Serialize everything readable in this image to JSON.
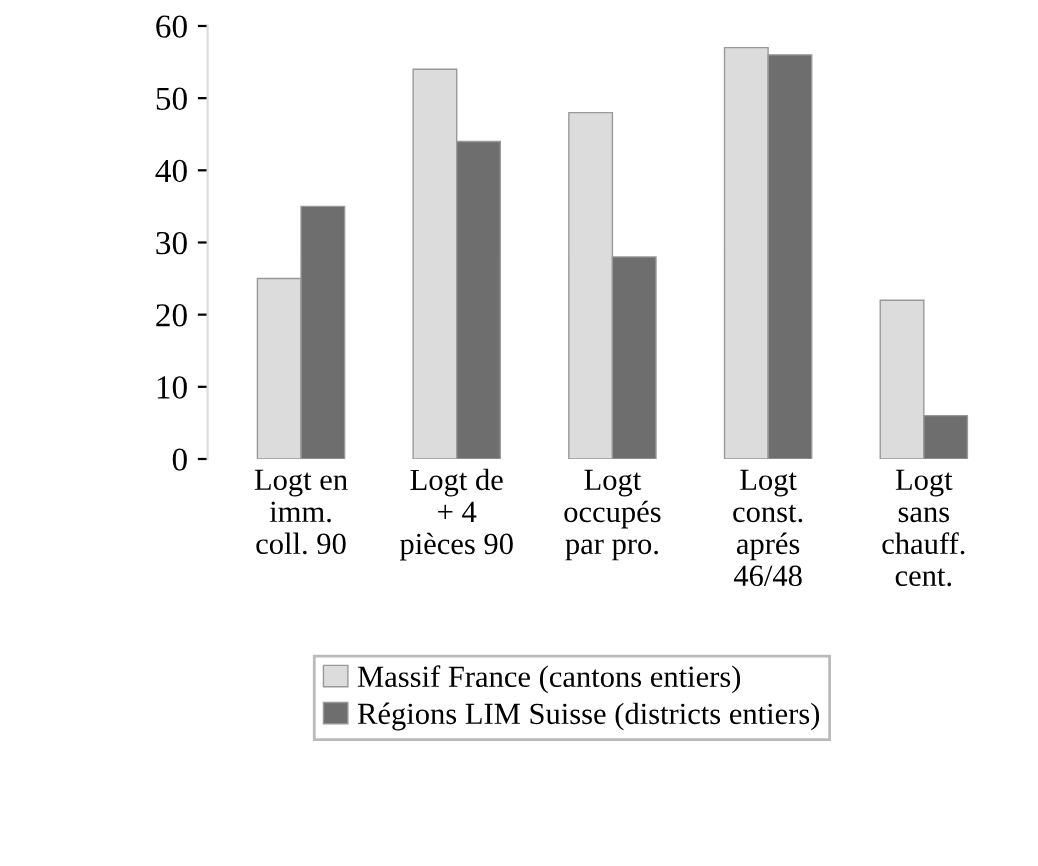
{
  "chart_data": {
    "type": "bar",
    "categories": [
      "Logt en\nimm.\ncoll. 90",
      "Logt de\n+ 4\npièces 90",
      "Logt\noccupés\npar pro.",
      "Logt\nconst.\naprés\n46/48",
      "Logt\nsans\nchauff.\ncent."
    ],
    "series": [
      {
        "name": "Massif France (cantons entiers)",
        "color": "#dcdcdc",
        "values": [
          25,
          54,
          48,
          57,
          22
        ]
      },
      {
        "name": "Régions LIM Suisse (districts entiers)",
        "color": "#6e6e6e",
        "values": [
          35,
          44,
          28,
          56,
          6
        ]
      }
    ],
    "ylim": [
      0,
      60
    ],
    "yticks": [
      0,
      10,
      20,
      30,
      40,
      50,
      60
    ],
    "grid": false,
    "legend": "bottom"
  }
}
